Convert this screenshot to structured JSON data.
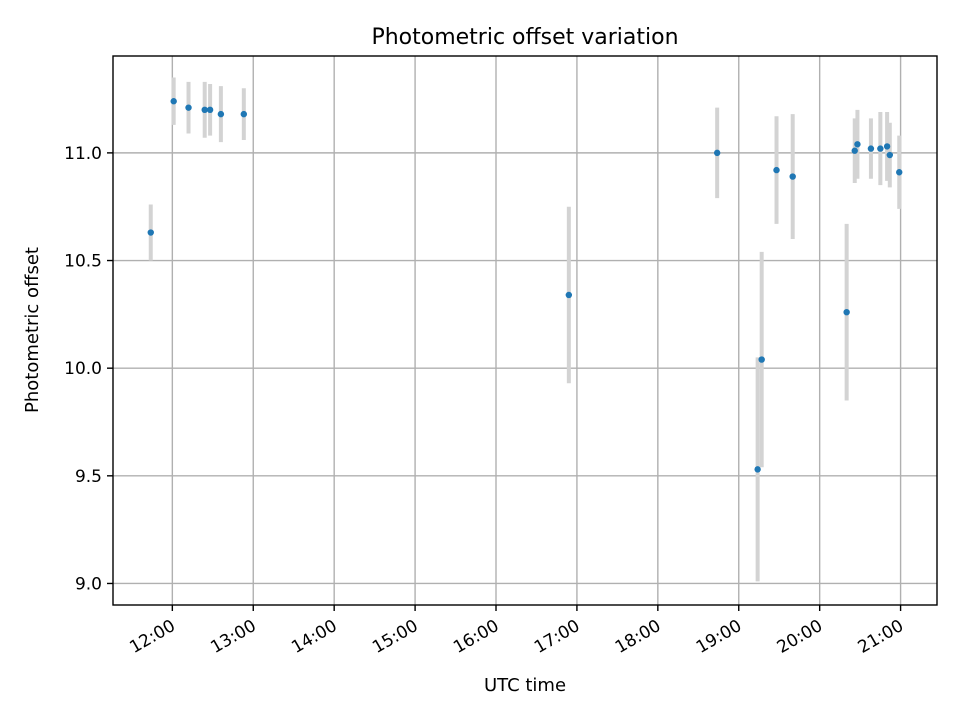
{
  "chart_data": {
    "type": "scatter",
    "title": "Photometric offset variation",
    "xlabel": "UTC time",
    "ylabel": "Photometric offset",
    "x_unit": "UTC time (HH:MM)",
    "xlim": [
      "11:16",
      "21:27"
    ],
    "ylim": [
      8.9,
      11.45
    ],
    "x_ticks": [
      "12:00",
      "13:00",
      "14:00",
      "15:00",
      "16:00",
      "17:00",
      "18:00",
      "19:00",
      "20:00",
      "21:00"
    ],
    "y_ticks": [
      "9.0",
      "9.5",
      "10.0",
      "10.5",
      "11.0"
    ],
    "grid": true,
    "series": [
      {
        "marker_color": "#1f77b4",
        "errorbar_color": "#d3d3d3",
        "points": [
          {
            "x": "11:44",
            "y": 10.63,
            "yerr": 0.13
          },
          {
            "x": "12:01",
            "y": 11.24,
            "yerr": 0.11
          },
          {
            "x": "12:12",
            "y": 11.21,
            "yerr": 0.12
          },
          {
            "x": "12:24",
            "y": 11.2,
            "yerr": 0.13
          },
          {
            "x": "12:28",
            "y": 11.2,
            "yerr": 0.12
          },
          {
            "x": "12:36",
            "y": 11.18,
            "yerr": 0.13
          },
          {
            "x": "12:53",
            "y": 11.18,
            "yerr": 0.12
          },
          {
            "x": "16:54",
            "y": 10.34,
            "yerr": 0.41
          },
          {
            "x": "18:44",
            "y": 11.0,
            "yerr": 0.21
          },
          {
            "x": "19:14",
            "y": 9.53,
            "yerr": 0.52
          },
          {
            "x": "19:17",
            "y": 10.04,
            "yerr": 0.5
          },
          {
            "x": "19:28",
            "y": 10.92,
            "yerr": 0.25
          },
          {
            "x": "19:40",
            "y": 10.89,
            "yerr": 0.29
          },
          {
            "x": "20:20",
            "y": 10.26,
            "yerr": 0.41
          },
          {
            "x": "20:26",
            "y": 11.01,
            "yerr": 0.15
          },
          {
            "x": "20:28",
            "y": 11.04,
            "yerr": 0.16
          },
          {
            "x": "20:38",
            "y": 11.02,
            "yerr": 0.14
          },
          {
            "x": "20:45",
            "y": 11.02,
            "yerr": 0.17
          },
          {
            "x": "20:50",
            "y": 11.03,
            "yerr": 0.16
          },
          {
            "x": "20:52",
            "y": 10.99,
            "yerr": 0.15
          },
          {
            "x": "20:59",
            "y": 10.91,
            "yerr": 0.17
          }
        ]
      }
    ]
  }
}
